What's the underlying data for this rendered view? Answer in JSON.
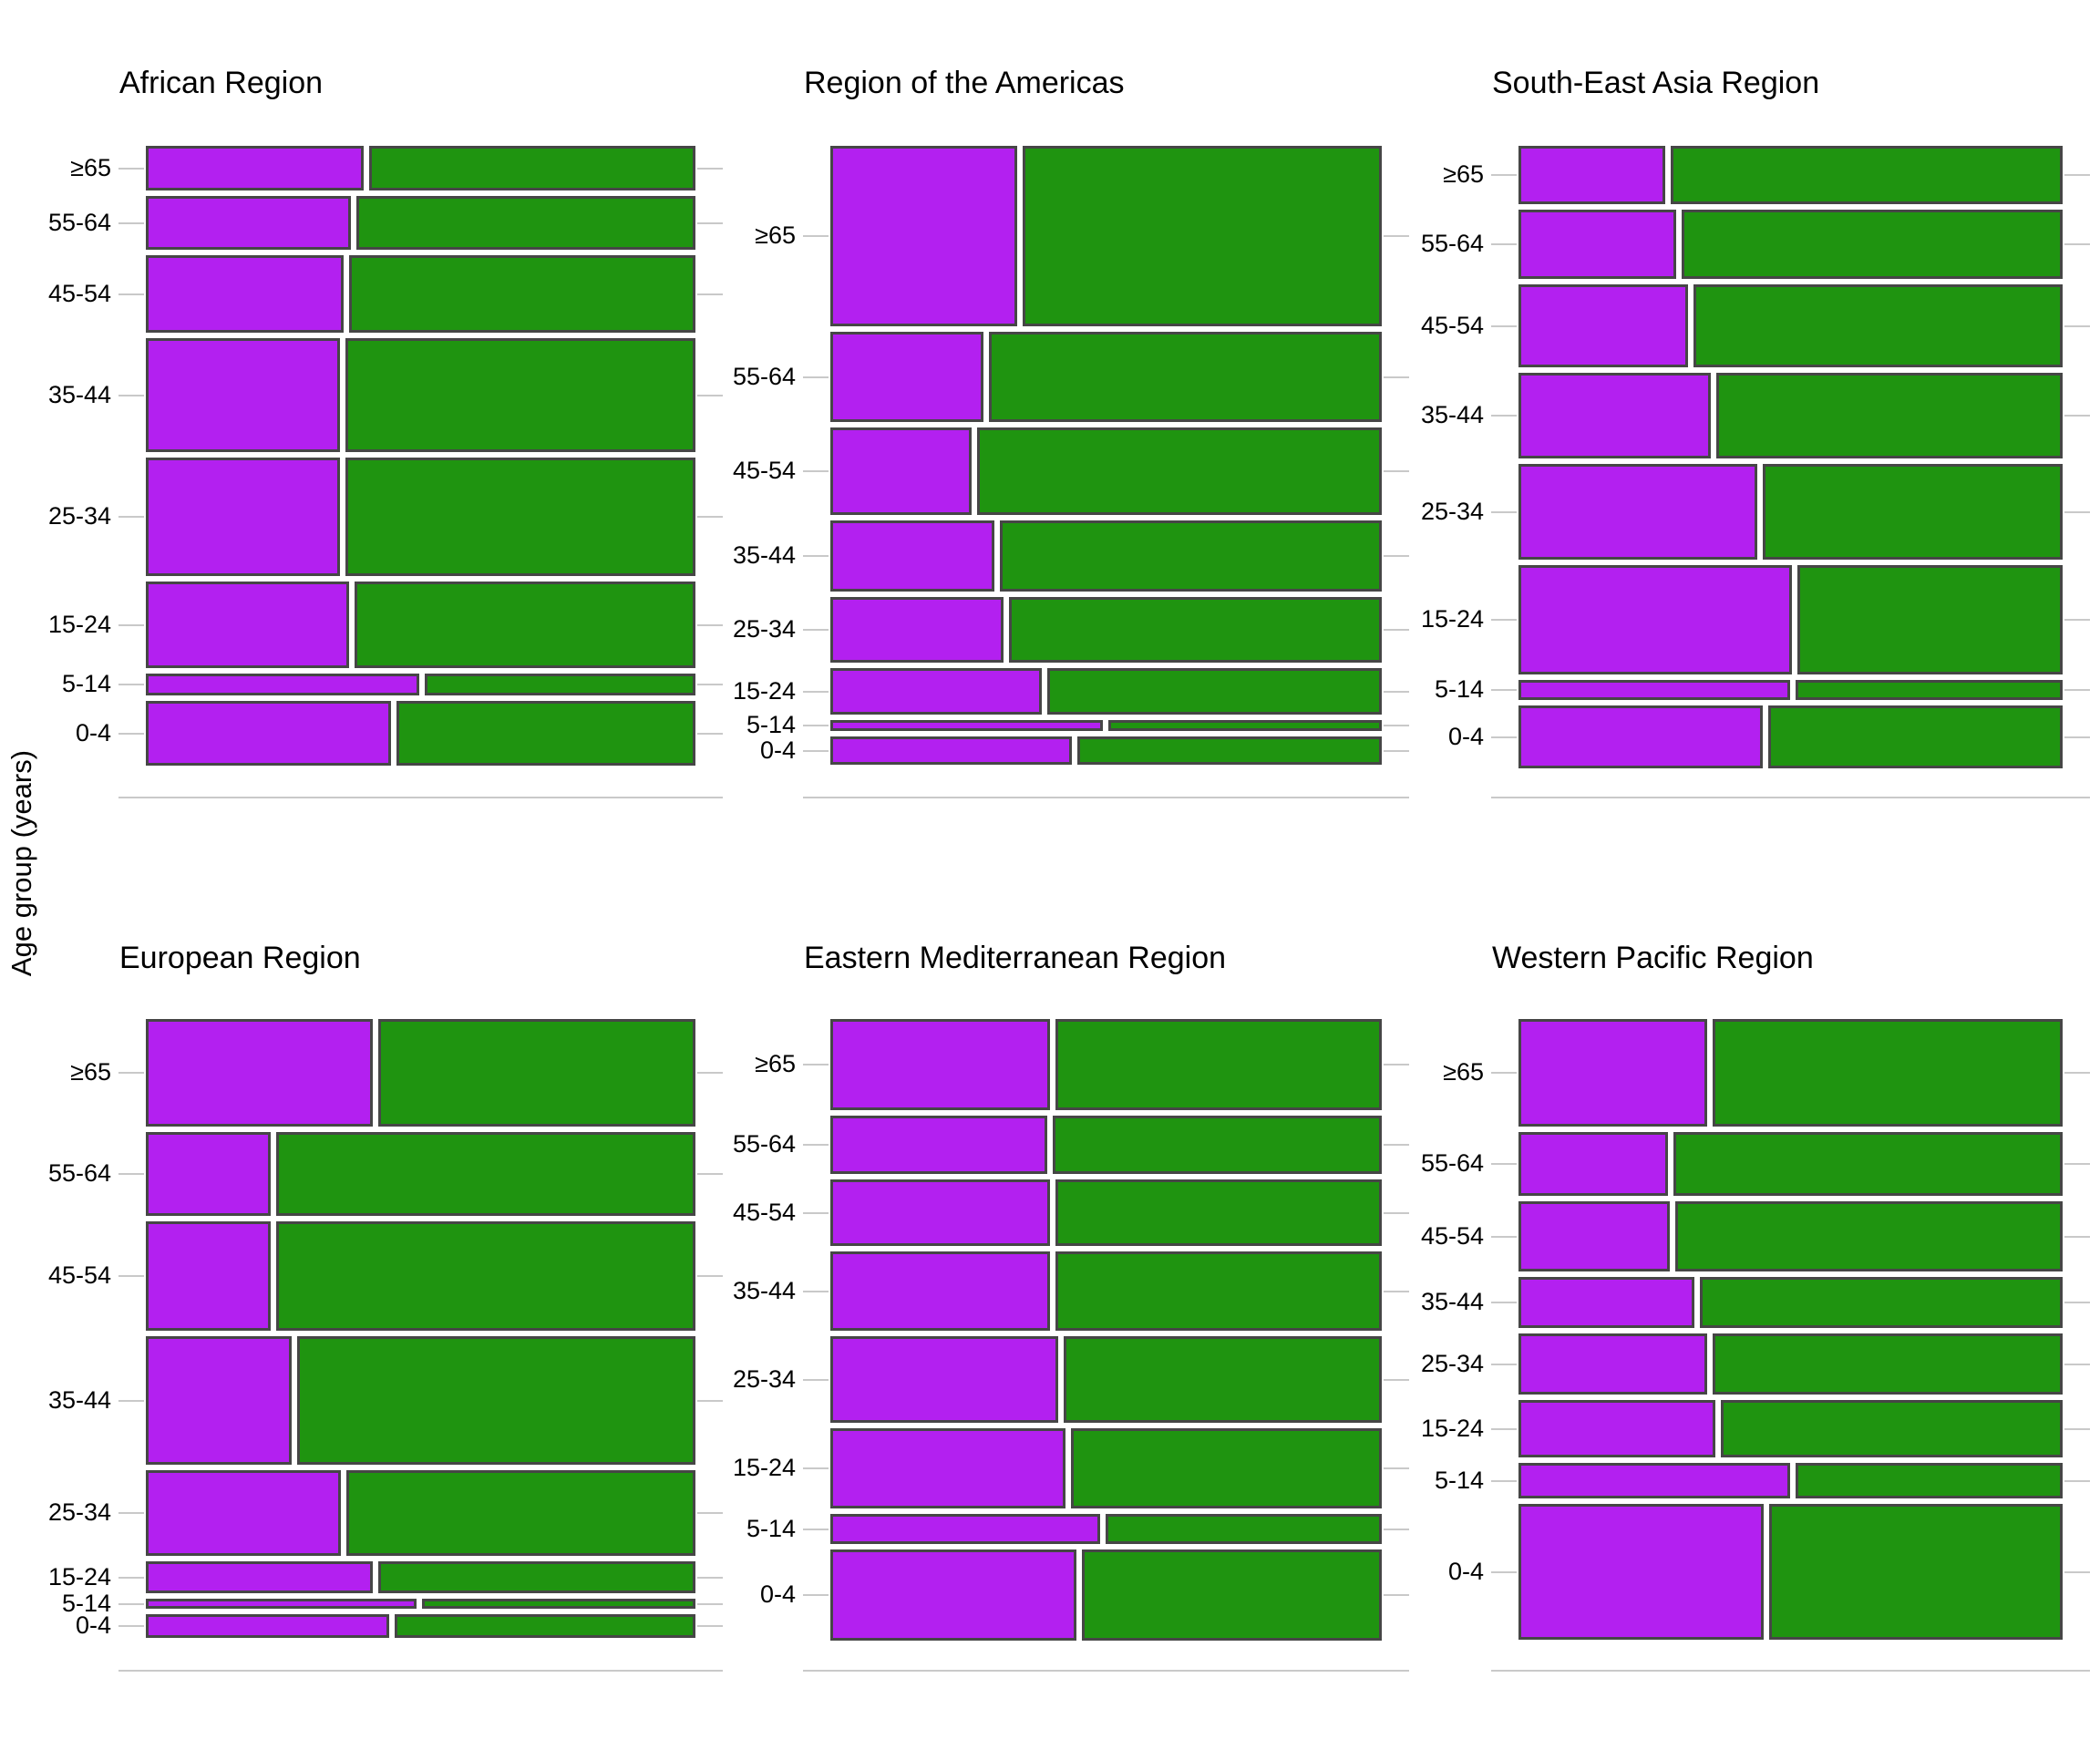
{
  "figure": {
    "ylabel": "Age group (years)"
  },
  "chart_data": {
    "type": "mosaic",
    "description": "Six-panel mosaic plot; one panel per WHO region. Each horizontal row is an age group whose thickness is its share of cases; each row is split into a purple (left) and green (right) segment by left_fraction.",
    "ylabel": "Age group (years)",
    "age_groups_top_to_bottom": [
      "≥65",
      "55-64",
      "45-54",
      "35-44",
      "25-34",
      "15-24",
      "5-14",
      "0-4"
    ],
    "series": [
      {
        "name": "purple-segment",
        "color": "#b320f0"
      },
      {
        "name": "green-segment",
        "color": "#1f9410"
      }
    ],
    "layout_hint": {
      "grid": "2 rows x 3 columns",
      "legend": "none",
      "background": "white",
      "gridlines": "light gray ticks left and right of rows, baseline under each panel"
    },
    "panels": [
      {
        "title": "African Region",
        "grid_row": 0,
        "grid_col": 0,
        "row_share": [
          0.077,
          0.0928,
          0.1336,
          0.195,
          0.2028,
          0.1494,
          0.0377,
          0.1116
        ],
        "left_fraction": [
          0.4,
          0.377,
          0.364,
          0.356,
          0.356,
          0.374,
          0.503,
          0.451
        ]
      },
      {
        "title": "Region of the Americas",
        "grid_row": 0,
        "grid_col": 1,
        "row_share": [
          0.3097,
          0.1557,
          0.1509,
          0.1226,
          0.1132,
          0.0802,
          0.0189,
          0.0487
        ],
        "left_fraction": [
          0.342,
          0.281,
          0.258,
          0.301,
          0.317,
          0.387,
          0.499,
          0.443
        ]
      },
      {
        "title": "South-East Asia Region",
        "grid_row": 0,
        "grid_col": 2,
        "row_share": [
          0.0994,
          0.1183,
          0.142,
          0.1467,
          0.164,
          0.1877,
          0.0347,
          0.1073
        ],
        "left_fraction": [
          0.273,
          0.293,
          0.314,
          0.357,
          0.443,
          0.508,
          0.505,
          0.454
        ]
      },
      {
        "title": "European Region",
        "grid_row": 1,
        "grid_col": 0,
        "row_share": [
          0.1853,
          0.1444,
          0.1884,
          0.2214,
          0.1476,
          0.0549,
          0.0173,
          0.0408
        ],
        "left_fraction": [
          0.417,
          0.229,
          0.229,
          0.268,
          0.358,
          0.417,
          0.497,
          0.447
        ]
      },
      {
        "title": "Eastern Mediterranean Region",
        "grid_row": 1,
        "grid_col": 1,
        "row_share": [
          0.1559,
          0.1008,
          0.115,
          0.1354,
          0.148,
          0.137,
          0.052,
          0.1559
        ],
        "left_fraction": [
          0.403,
          0.397,
          0.403,
          0.403,
          0.418,
          0.43,
          0.494,
          0.451
        ]
      },
      {
        "title": "Western Pacific Region",
        "grid_row": 1,
        "grid_col": 2,
        "row_share": [
          0.1854,
          0.1093,
          0.1204,
          0.0872,
          0.1046,
          0.0983,
          0.0618,
          0.233
        ],
        "left_fraction": [
          0.35,
          0.277,
          0.281,
          0.326,
          0.35,
          0.366,
          0.505,
          0.455
        ]
      }
    ],
    "colors": {
      "purple": "#b320f0",
      "green": "#1f9410",
      "bar_border": "#464646",
      "gridline": "#c9c9c9",
      "text": "#000000",
      "background": "#ffffff"
    }
  }
}
